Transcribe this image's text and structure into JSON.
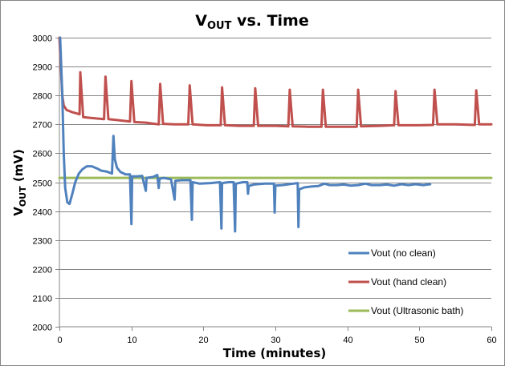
{
  "chart_data": {
    "type": "line",
    "title": {
      "main": "V",
      "sub": "OUT",
      "rest": " vs. Time"
    },
    "xlabel": "Time (minutes)",
    "ylabel": {
      "main": "V",
      "sub": "OUT",
      "rest": " (mV)"
    },
    "xlim": [
      0,
      60
    ],
    "ylim": [
      2000,
      3000
    ],
    "xticks": [
      0,
      10,
      20,
      30,
      40,
      50,
      60
    ],
    "yticks": [
      2000,
      2100,
      2200,
      2300,
      2400,
      2500,
      2600,
      2700,
      2800,
      2900,
      3000
    ],
    "grid": "horizontal",
    "legend_position": "bottom-right",
    "series": [
      {
        "name": "Vout (no clean)",
        "color": "#4F81BD",
        "points": [
          [
            0.1,
            3000
          ],
          [
            0.4,
            2800
          ],
          [
            0.6,
            2600
          ],
          [
            0.8,
            2480
          ],
          [
            1.1,
            2430
          ],
          [
            1.4,
            2425
          ],
          [
            1.8,
            2460
          ],
          [
            2.2,
            2500
          ],
          [
            2.7,
            2530
          ],
          [
            3.2,
            2545
          ],
          [
            3.8,
            2555
          ],
          [
            4.5,
            2555
          ],
          [
            5.2,
            2548
          ],
          [
            5.8,
            2540
          ],
          [
            6.5,
            2537
          ],
          [
            7.0,
            2533
          ],
          [
            7.3,
            2530
          ],
          [
            7.5,
            2660
          ],
          [
            7.7,
            2580
          ],
          [
            8.0,
            2550
          ],
          [
            8.5,
            2535
          ],
          [
            9.2,
            2527
          ],
          [
            9.8,
            2527
          ],
          [
            10.0,
            2355
          ],
          [
            10.1,
            2520
          ],
          [
            10.8,
            2520
          ],
          [
            11.5,
            2522
          ],
          [
            12.0,
            2470
          ],
          [
            12.1,
            2515
          ],
          [
            13.0,
            2518
          ],
          [
            13.6,
            2525
          ],
          [
            13.8,
            2480
          ],
          [
            13.9,
            2512
          ],
          [
            14.5,
            2515
          ],
          [
            15.5,
            2510
          ],
          [
            16.0,
            2440
          ],
          [
            16.1,
            2505
          ],
          [
            17.0,
            2507
          ],
          [
            18.2,
            2507
          ],
          [
            18.4,
            2370
          ],
          [
            18.5,
            2500
          ],
          [
            19.5,
            2495
          ],
          [
            21.0,
            2497
          ],
          [
            22.3,
            2500
          ],
          [
            22.5,
            2340
          ],
          [
            22.6,
            2497
          ],
          [
            23.5,
            2500
          ],
          [
            24.2,
            2500
          ],
          [
            24.4,
            2330
          ],
          [
            24.5,
            2495
          ],
          [
            25.5,
            2500
          ],
          [
            26.1,
            2500
          ],
          [
            26.2,
            2460
          ],
          [
            26.3,
            2487
          ],
          [
            27.0,
            2492
          ],
          [
            28.5,
            2495
          ],
          [
            29.8,
            2495
          ],
          [
            29.9,
            2395
          ],
          [
            30.0,
            2488
          ],
          [
            31.0,
            2490
          ],
          [
            32.5,
            2495
          ],
          [
            33.1,
            2497
          ],
          [
            33.2,
            2345
          ],
          [
            33.3,
            2475
          ],
          [
            34.0,
            2482
          ],
          [
            35.0,
            2485
          ],
          [
            36.0,
            2487
          ],
          [
            36.8,
            2495
          ],
          [
            37.5,
            2490
          ],
          [
            38.5,
            2490
          ],
          [
            39.5,
            2492
          ],
          [
            40.5,
            2488
          ],
          [
            41.5,
            2490
          ],
          [
            42.5,
            2495
          ],
          [
            43.3,
            2490
          ],
          [
            44.5,
            2490
          ],
          [
            45.5,
            2492
          ],
          [
            46.5,
            2488
          ],
          [
            47.5,
            2493
          ],
          [
            48.5,
            2490
          ],
          [
            49.5,
            2493
          ],
          [
            50.5,
            2490
          ],
          [
            51.5,
            2493
          ]
        ]
      },
      {
        "name": "Vout (hand clean)",
        "color": "#C0504D",
        "points": [
          [
            0.0,
            3000
          ],
          [
            0.2,
            2900
          ],
          [
            0.4,
            2800
          ],
          [
            0.6,
            2765
          ],
          [
            1.0,
            2750
          ],
          [
            1.8,
            2742
          ],
          [
            2.8,
            2735
          ],
          [
            2.9,
            2880
          ],
          [
            3.3,
            2725
          ],
          [
            4.5,
            2722
          ],
          [
            6.2,
            2718
          ],
          [
            6.4,
            2865
          ],
          [
            6.8,
            2718
          ],
          [
            8.0,
            2715
          ],
          [
            9.8,
            2710
          ],
          [
            10.0,
            2850
          ],
          [
            10.4,
            2708
          ],
          [
            12.0,
            2706
          ],
          [
            13.8,
            2700
          ],
          [
            14.0,
            2840
          ],
          [
            14.4,
            2702
          ],
          [
            16.0,
            2700
          ],
          [
            17.9,
            2700
          ],
          [
            18.1,
            2835
          ],
          [
            18.5,
            2700
          ],
          [
            20.5,
            2697
          ],
          [
            22.4,
            2697
          ],
          [
            22.6,
            2828
          ],
          [
            23.0,
            2697
          ],
          [
            25.0,
            2695
          ],
          [
            27.0,
            2695
          ],
          [
            27.2,
            2825
          ],
          [
            27.6,
            2695
          ],
          [
            30.0,
            2695
          ],
          [
            31.8,
            2693
          ],
          [
            32.0,
            2820
          ],
          [
            32.4,
            2693
          ],
          [
            34.5,
            2692
          ],
          [
            36.4,
            2692
          ],
          [
            36.6,
            2820
          ],
          [
            37.0,
            2692
          ],
          [
            39.5,
            2692
          ],
          [
            41.3,
            2692
          ],
          [
            41.5,
            2820
          ],
          [
            41.9,
            2693
          ],
          [
            44.5,
            2695
          ],
          [
            46.5,
            2697
          ],
          [
            46.7,
            2815
          ],
          [
            47.1,
            2697
          ],
          [
            50.0,
            2697
          ],
          [
            51.9,
            2698
          ],
          [
            52.1,
            2820
          ],
          [
            52.5,
            2700
          ],
          [
            55.0,
            2700
          ],
          [
            57.7,
            2698
          ],
          [
            57.9,
            2818
          ],
          [
            58.3,
            2700
          ],
          [
            60.0,
            2700
          ]
        ]
      },
      {
        "name": "Vout (Ultrasonic bath)",
        "color": "#9BBB59",
        "points": [
          [
            0,
            2515
          ],
          [
            60,
            2515
          ]
        ]
      }
    ]
  }
}
